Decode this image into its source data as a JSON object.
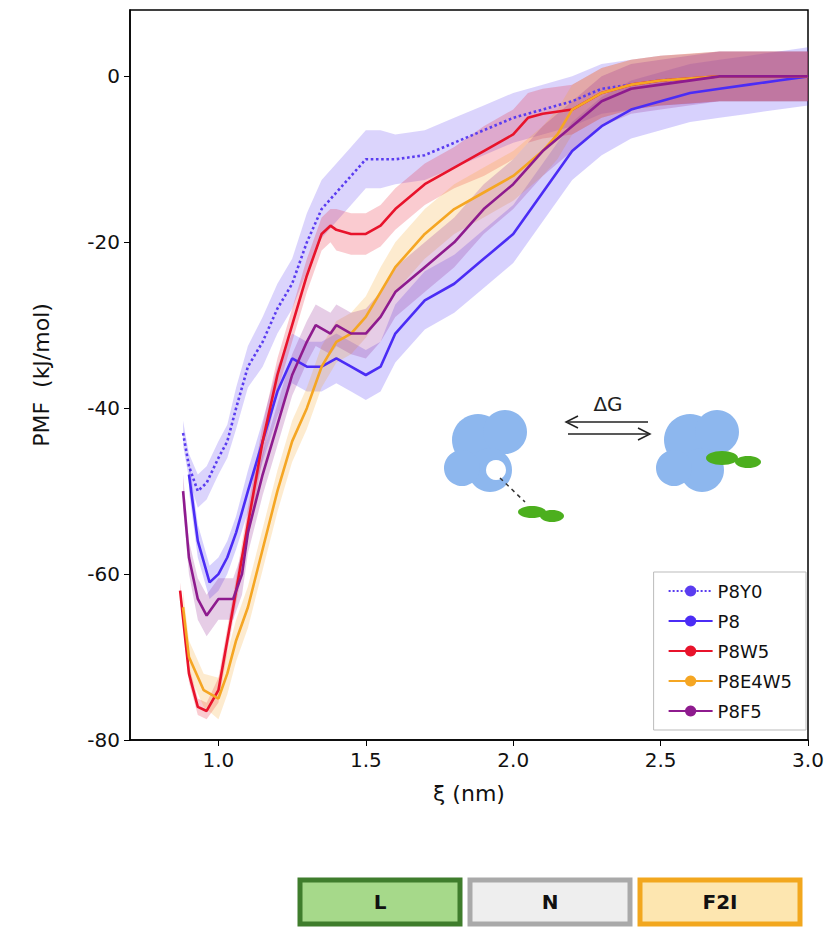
{
  "chart_data": {
    "type": "line",
    "x_label": "ξ (nm)",
    "y_label": "PMF  (kJ/mol)",
    "xlim": [
      0.7,
      3.0
    ],
    "ylim": [
      -80,
      8
    ],
    "xticks": [
      {
        "value": 1.0,
        "label": "1.0"
      },
      {
        "value": 1.5,
        "label": "1.5"
      },
      {
        "value": 2.0,
        "label": "2.0"
      },
      {
        "value": 2.5,
        "label": "2.5"
      },
      {
        "value": 3.0,
        "label": "3.0"
      }
    ],
    "yticks": [
      0,
      -20,
      -40,
      -60,
      -80
    ],
    "grid": false,
    "legend": "lower right",
    "annotations": [
      "ΔG"
    ],
    "boxes": [
      {
        "label": "L",
        "color": "#3f7d2c"
      },
      {
        "label": "N",
        "color": "#a9a9a9"
      },
      {
        "label": "F2I",
        "color": "#f2a71e"
      }
    ],
    "series": [
      {
        "name": "P8Y0",
        "color": "#5a3cf0",
        "line_style": "dotted",
        "x": [
          0.88,
          0.9,
          0.93,
          0.96,
          1.0,
          1.03,
          1.06,
          1.1,
          1.15,
          1.2,
          1.25,
          1.3,
          1.35,
          1.4,
          1.45,
          1.5,
          1.55,
          1.6,
          1.7,
          1.8,
          1.9,
          2.0,
          2.1,
          2.2,
          2.3,
          2.4,
          2.5,
          2.6,
          2.7,
          2.8,
          3.0
        ],
        "values": [
          -43,
          -47,
          -50,
          -49,
          -46,
          -44,
          -40,
          -35,
          -32,
          -28,
          -25,
          -20,
          -16,
          -14,
          -12,
          -10,
          -10,
          -10,
          -9.5,
          -8,
          -6.5,
          -5,
          -4,
          -3,
          -1.5,
          -1,
          -0.5,
          -0.3,
          0,
          0,
          0
        ],
        "errors": [
          1.5,
          1.5,
          2,
          2,
          2,
          2,
          2.5,
          2.5,
          3,
          3,
          3,
          3.5,
          3.5,
          3.5,
          3.5,
          3.5,
          3.5,
          3,
          3,
          3,
          3,
          3,
          3,
          3,
          3,
          3,
          3,
          3,
          3,
          3,
          3
        ]
      },
      {
        "name": "P8",
        "color": "#4b2cf5",
        "line_style": "solid",
        "x": [
          0.9,
          0.93,
          0.97,
          1.0,
          1.03,
          1.06,
          1.1,
          1.15,
          1.2,
          1.25,
          1.3,
          1.35,
          1.4,
          1.45,
          1.5,
          1.55,
          1.6,
          1.7,
          1.8,
          1.9,
          2.0,
          2.1,
          2.2,
          2.3,
          2.4,
          2.5,
          2.6,
          2.7,
          2.8,
          2.9,
          3.0
        ],
        "values": [
          -48,
          -56,
          -61,
          -60,
          -58,
          -55,
          -50,
          -44,
          -38,
          -34,
          -35,
          -35,
          -34,
          -35,
          -36,
          -35,
          -31,
          -27,
          -25,
          -22,
          -19,
          -14,
          -9,
          -6,
          -4,
          -3,
          -2,
          -1.5,
          -1,
          -0.5,
          0
        ],
        "errors": [
          2,
          2,
          2,
          2,
          2,
          2,
          2.5,
          2.5,
          3,
          3,
          3,
          3,
          3,
          3,
          3,
          3,
          3.5,
          3.5,
          3.5,
          3.5,
          3.5,
          3.5,
          3.5,
          3.5,
          3.5,
          3.5,
          3.5,
          3.5,
          3.5,
          3.5,
          3.5
        ]
      },
      {
        "name": "P8W5",
        "color": "#e8132b",
        "line_style": "solid",
        "x": [
          0.87,
          0.9,
          0.93,
          0.96,
          1.0,
          1.03,
          1.06,
          1.1,
          1.15,
          1.2,
          1.25,
          1.3,
          1.35,
          1.38,
          1.4,
          1.45,
          1.5,
          1.55,
          1.6,
          1.7,
          1.8,
          1.9,
          2.0,
          2.05,
          2.1,
          2.2,
          2.3,
          2.4,
          2.5,
          2.7,
          3.0
        ],
        "values": [
          -62,
          -72,
          -76,
          -76.5,
          -74,
          -68,
          -62,
          -54,
          -44,
          -36,
          -30,
          -24,
          -19,
          -18,
          -18.5,
          -19,
          -19,
          -18,
          -16,
          -13,
          -11,
          -9,
          -7,
          -5,
          -4.5,
          -4,
          -2,
          -1,
          -0.5,
          0,
          0
        ],
        "errors": [
          1,
          1,
          1,
          1,
          1.5,
          1.5,
          1.5,
          2,
          2,
          2,
          2,
          2,
          2,
          2,
          2.5,
          2.5,
          2.5,
          2.5,
          2.5,
          2.5,
          2.5,
          3,
          3,
          3,
          3,
          3,
          3,
          3,
          3,
          3,
          3
        ]
      },
      {
        "name": "P8E4W5",
        "color": "#f5a623",
        "line_style": "solid",
        "x": [
          0.88,
          0.9,
          0.95,
          1.0,
          1.03,
          1.06,
          1.1,
          1.15,
          1.2,
          1.25,
          1.3,
          1.35,
          1.4,
          1.45,
          1.5,
          1.55,
          1.6,
          1.7,
          1.8,
          1.9,
          2.0,
          2.1,
          2.15,
          2.2,
          2.3,
          2.4,
          2.5,
          2.7,
          3.0
        ],
        "values": [
          -64,
          -70,
          -74,
          -75,
          -72,
          -68,
          -64,
          -57,
          -50,
          -44,
          -40,
          -35,
          -32,
          -31,
          -29,
          -26,
          -23,
          -19,
          -16,
          -14,
          -12,
          -9,
          -7,
          -4,
          -2,
          -1,
          -0.5,
          0,
          0
        ],
        "errors": [
          2,
          2,
          2,
          2.5,
          2.5,
          2.5,
          2.5,
          2.5,
          2.5,
          2.5,
          2.5,
          2.5,
          2.5,
          2.5,
          2.5,
          3,
          3,
          3,
          3,
          3,
          3,
          3,
          3,
          3,
          3,
          3,
          3,
          3,
          3
        ]
      },
      {
        "name": "P8F5",
        "color": "#8e1b8e",
        "line_style": "solid",
        "x": [
          0.88,
          0.9,
          0.93,
          0.96,
          1.0,
          1.05,
          1.08,
          1.1,
          1.15,
          1.2,
          1.25,
          1.3,
          1.33,
          1.38,
          1.4,
          1.45,
          1.5,
          1.55,
          1.6,
          1.7,
          1.8,
          1.9,
          2.0,
          2.1,
          2.2,
          2.3,
          2.4,
          2.5,
          2.7,
          3.0
        ],
        "values": [
          -50,
          -58,
          -63,
          -65,
          -63,
          -63,
          -60,
          -55,
          -48,
          -42,
          -36,
          -32,
          -30,
          -31,
          -30,
          -31,
          -31,
          -29,
          -26,
          -23,
          -20,
          -16,
          -13,
          -9,
          -6,
          -3,
          -1.5,
          -1,
          0,
          0
        ],
        "errors": [
          2,
          2,
          2.5,
          2.5,
          2.5,
          2.5,
          2.5,
          2.5,
          2.5,
          2.5,
          2.5,
          2.5,
          2.5,
          2.5,
          2.5,
          2.5,
          3,
          3,
          3,
          3,
          3,
          3,
          3,
          3,
          3,
          3,
          3,
          3,
          3,
          3
        ]
      }
    ]
  }
}
